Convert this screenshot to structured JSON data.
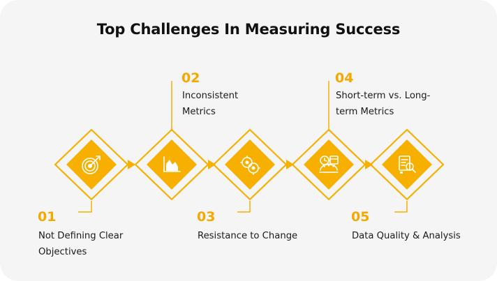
{
  "title": "Top Challenges In Measuring Success",
  "steps": [
    {
      "number": "01",
      "line1": "Not Defining Clear",
      "line2": "Objectives",
      "icon": "target-icon"
    },
    {
      "number": "02",
      "line1": "Inconsistent",
      "line2": "Metrics",
      "icon": "chart-icon"
    },
    {
      "number": "03",
      "line1": "Resistance to Change",
      "line2": "",
      "icon": "gears-icon"
    },
    {
      "number": "04",
      "line1": "Short-term vs. Long-",
      "line2": "term Metrics",
      "icon": "clock-calendar-icon"
    },
    {
      "number": "05",
      "line1": "Data Quality & Analysis",
      "line2": "",
      "icon": "report-icon"
    }
  ],
  "colors": {
    "accent": "#f7b000",
    "number": "#f5a900",
    "background": "#f5f5f5"
  }
}
